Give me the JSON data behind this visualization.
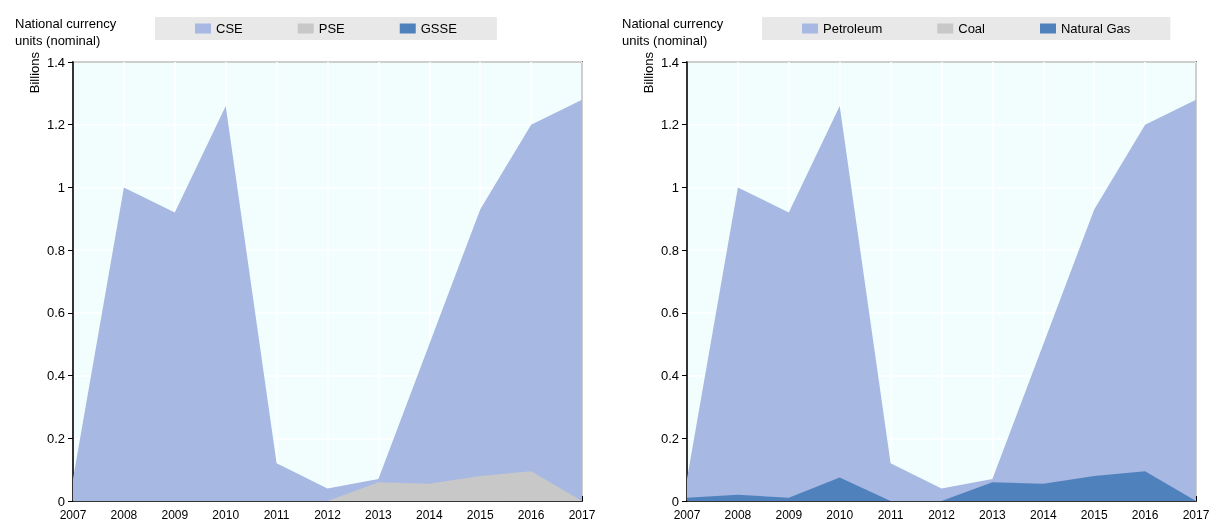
{
  "chart_data": [
    {
      "type": "area",
      "subtitle": "National currency units (nominal)",
      "ylabel": "Billions",
      "categories": [
        "2007",
        "2008",
        "2009",
        "2010",
        "2011",
        "2012",
        "2013",
        "2014",
        "2015",
        "2016",
        "2017"
      ],
      "series": [
        {
          "name": "CSE",
          "color": "#a7b8e2",
          "values": [
            0.07,
            1.0,
            0.92,
            1.26,
            0.12,
            0.04,
            0.07,
            0.5,
            0.93,
            1.2,
            1.28
          ]
        },
        {
          "name": "PSE",
          "color": "#c8c8c8",
          "values": [
            0,
            0,
            0,
            0,
            0,
            0,
            0.06,
            0.055,
            0.08,
            0.095,
            0
          ]
        },
        {
          "name": "GSSE",
          "color": "#4f81bd",
          "values": [
            null,
            null,
            null,
            null,
            null,
            null,
            null,
            null,
            null,
            null,
            null
          ]
        }
      ],
      "ylim": [
        0,
        1.4
      ],
      "yticks": [
        0,
        0.2,
        0.4,
        0.6,
        0.8,
        1,
        1.2,
        1.4
      ],
      "grid": true,
      "legend": "top"
    },
    {
      "type": "area",
      "subtitle": "National currency units (nominal)",
      "ylabel": "Billions",
      "categories": [
        "2007",
        "2008",
        "2009",
        "2010",
        "2011",
        "2012",
        "2013",
        "2014",
        "2015",
        "2016",
        "2017"
      ],
      "series": [
        {
          "name": "Petroleum",
          "color": "#a7b8e2",
          "values": [
            0.07,
            1.0,
            0.92,
            1.26,
            0.12,
            0.04,
            0.07,
            0.5,
            0.93,
            1.2,
            1.28
          ]
        },
        {
          "name": "Coal",
          "color": "#c8c8c8",
          "values": [
            null,
            null,
            null,
            null,
            null,
            null,
            null,
            null,
            null,
            null,
            null
          ]
        },
        {
          "name": "Natural Gas",
          "color": "#4f81bd",
          "values": [
            0.01,
            0.02,
            0.01,
            0.075,
            0,
            0,
            0.06,
            0.055,
            0.08,
            0.095,
            0
          ]
        }
      ],
      "ylim": [
        0,
        1.4
      ],
      "yticks": [
        0,
        0.2,
        0.4,
        0.6,
        0.8,
        1,
        1.2,
        1.4
      ],
      "grid": true,
      "legend": "top"
    }
  ]
}
